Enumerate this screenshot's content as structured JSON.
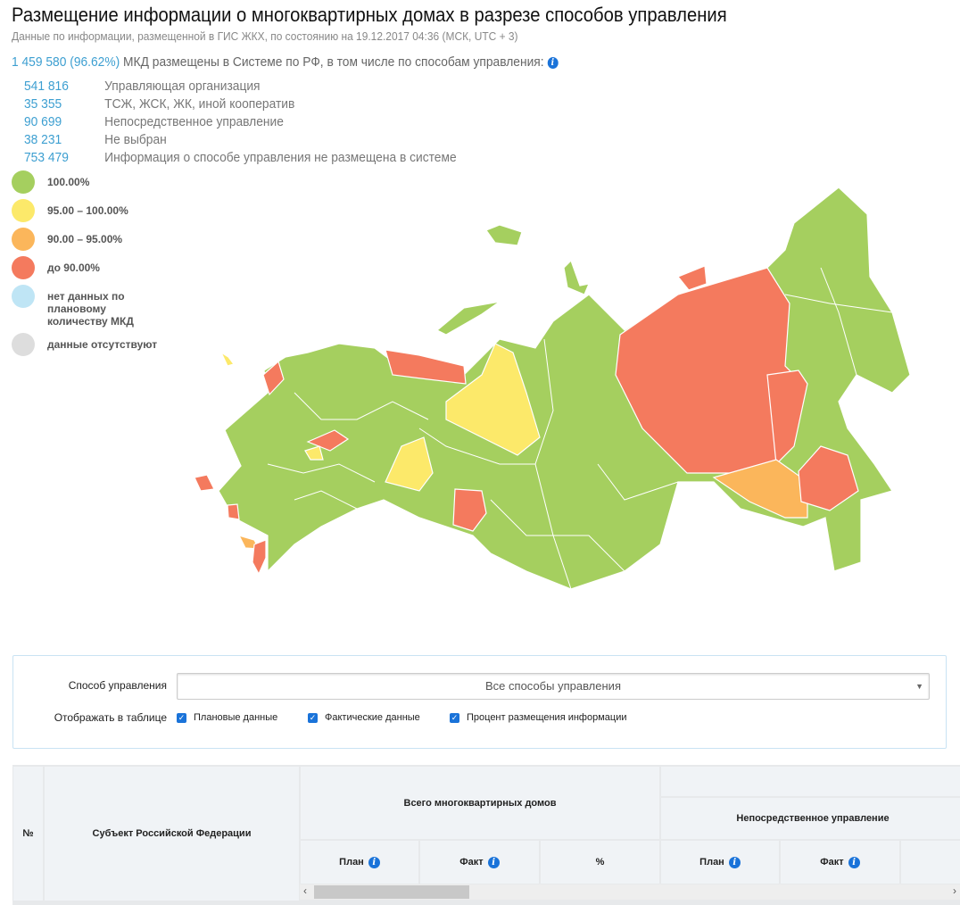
{
  "header": {
    "title": "Размещение информации о многоквартирных домах в разрезе способов управления",
    "subtitle": "Данные по информации, размещенной в ГИС ЖКХ, по состоянию на 19.12.2017 04:36 (МСК, UTC + 3)"
  },
  "summary": {
    "total": "1 459 580 (96.62%)",
    "text": " МКД размещены в Системе по РФ, в том числе по способам управления: ",
    "items": [
      {
        "value": "541 816",
        "label": "Управляющая организация"
      },
      {
        "value": "35 355",
        "label": "ТСЖ, ЖСК, ЖК, иной кооператив"
      },
      {
        "value": "90 699",
        "label": "Непосредственное управление"
      },
      {
        "value": "38 231",
        "label": "Не выбран"
      },
      {
        "value": "753 479",
        "label": "Информация о способе управления не размещена в системе"
      }
    ]
  },
  "legend": [
    {
      "label": "100.00%",
      "color": "#a5cf5f"
    },
    {
      "label": "95.00 – 100.00%",
      "color": "#fce96a"
    },
    {
      "label": "90.00 – 95.00%",
      "color": "#fbb65b"
    },
    {
      "label": "до 90.00%",
      "color": "#f47a5e"
    },
    {
      "label": "нет данных по плановому количеству МКД",
      "color": "#bfe5f5"
    },
    {
      "label": "данные отсутствуют",
      "color": "#dddddd"
    }
  ],
  "filter": {
    "method_label": "Способ управления",
    "method_value": "Все способы управления",
    "show_label": "Отображать в таблице",
    "checkboxes": [
      {
        "label": "Плановые данные",
        "checked": true
      },
      {
        "label": "Фактические данные",
        "checked": true
      },
      {
        "label": "Процент размещения информации",
        "checked": true
      }
    ]
  },
  "table": {
    "col_no": "№",
    "col_subject": "Субъект Российской Федерации",
    "group_total": "Всего многоквартирных домов",
    "group_direct": "Непосредственное управление",
    "plan": "План",
    "fact": "Факт",
    "percent": "%"
  }
}
